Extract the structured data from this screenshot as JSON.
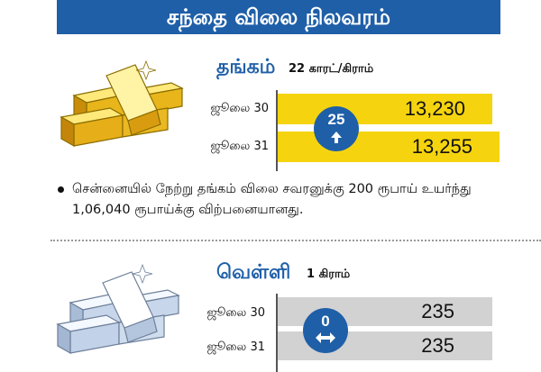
{
  "header": {
    "title": "சந்தை விலை நிலவரம்"
  },
  "gold": {
    "title": "தங்கம்",
    "unit": "22 காரட்/கிராம்",
    "rows": [
      {
        "label": "ஜூலை 30",
        "value": "13,230"
      },
      {
        "label": "ஜூலை 31",
        "value": "13,255"
      }
    ],
    "change": {
      "amount": "25",
      "direction": "up"
    },
    "color": "#f5d40f"
  },
  "note": {
    "text": "சென்னையில் நேற்று தங்கம் விலை சவரனுக்கு 200 ரூபாய் உயர்ந்து 1,06,040 ரூபாய்க்கு விற்பனையானது."
  },
  "silver": {
    "title": "வெள்ளி",
    "unit": "1 கிராம்",
    "rows": [
      {
        "label": "ஜூலை 30",
        "value": "235"
      },
      {
        "label": "ஜூலை 31",
        "value": "235"
      }
    ],
    "change": {
      "amount": "0",
      "direction": "unchanged"
    },
    "color": "#d2d2d2"
  },
  "accent_color": "#1f5fa8"
}
